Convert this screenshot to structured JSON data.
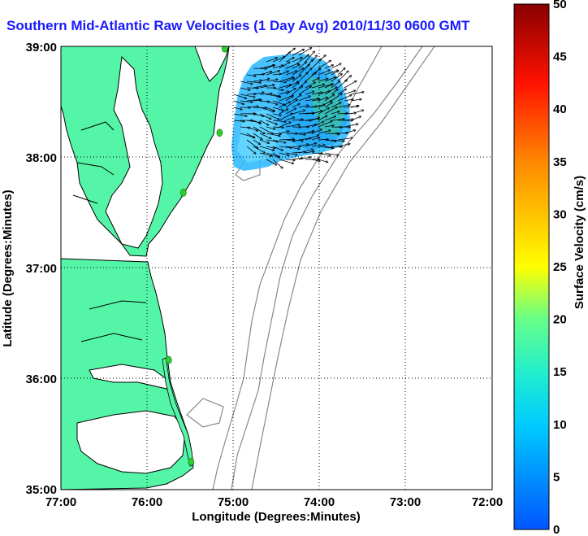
{
  "title": "Southern Mid-Atlantic Raw Velocities (1 Day Avg) 2010/11/30 0600 GMT",
  "axes": {
    "xlabel": "Longitude (Degrees:Minutes)",
    "ylabel": "Latitude (Degrees:Minutes)",
    "xticks": [
      "77:00",
      "76:00",
      "75:00",
      "74:00",
      "73:00",
      "72:00"
    ],
    "yticks": [
      "39:00",
      "38:00",
      "37:00",
      "36:00",
      "35:00"
    ]
  },
  "colorbar": {
    "label": "Surface Velocity (cm/s)",
    "min": 0,
    "max": 50,
    "ticks": [
      "0",
      "5",
      "10",
      "15",
      "20",
      "25",
      "30",
      "35",
      "40",
      "45",
      "50"
    ]
  },
  "colors": {
    "land": "#55f5a8",
    "coast": "#000000",
    "bathymetry": "#888888",
    "title": "#1a1aff",
    "station": "#2bd12b"
  },
  "map": {
    "lon_range": [
      -77,
      -72
    ],
    "lat_range": [
      35,
      39
    ],
    "grid": true,
    "stations": [
      {
        "lon": -75.1,
        "lat": 38.98
      },
      {
        "lon": -75.16,
        "lat": 38.22
      },
      {
        "lon": -75.58,
        "lat": 37.68
      },
      {
        "lon": -75.75,
        "lat": 36.17
      },
      {
        "lon": -75.49,
        "lat": 35.25
      }
    ]
  }
}
